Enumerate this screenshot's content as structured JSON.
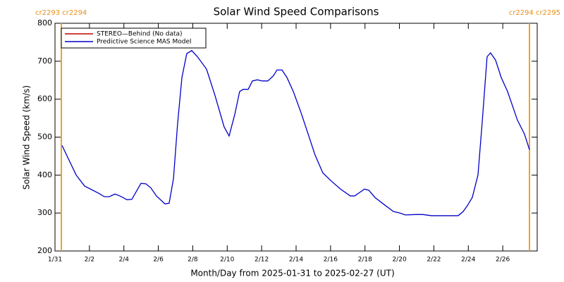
{
  "chart_data": {
    "type": "line",
    "title": "Solar Wind Speed Comparisons",
    "x_label": "Month/Day from 2025-01-31 to 2025-02-27 (UT)",
    "y_label": "Solar Wind Speed (km/s)",
    "xlim": [
      0,
      28
    ],
    "xticks": [
      {
        "value": 0,
        "label": "1/31"
      },
      {
        "value": 2,
        "label": "2/2"
      },
      {
        "value": 4,
        "label": "2/4"
      },
      {
        "value": 6,
        "label": "2/6"
      },
      {
        "value": 8,
        "label": "2/8"
      },
      {
        "value": 10,
        "label": "2/10"
      },
      {
        "value": 12,
        "label": "2/12"
      },
      {
        "value": 14,
        "label": "2/14"
      },
      {
        "value": 16,
        "label": "2/16"
      },
      {
        "value": 18,
        "label": "2/18"
      },
      {
        "value": 20,
        "label": "2/20"
      },
      {
        "value": 22,
        "label": "2/22"
      },
      {
        "value": 24,
        "label": "2/24"
      },
      {
        "value": 26,
        "label": "2/26"
      }
    ],
    "ylim": [
      200,
      800
    ],
    "yticks": [
      200,
      300,
      400,
      500,
      600,
      700,
      800
    ],
    "legend": "upper left",
    "markers_color": "#f0a030",
    "carrington_markers": [
      {
        "x": 0.37,
        "label": "cr2293 cr2294"
      },
      {
        "x": 27.55,
        "label": "cr2294 cr2295"
      }
    ],
    "series": [
      {
        "name": "STEREO—Behind (No data)",
        "color": "#c00000",
        "x": [],
        "values": []
      },
      {
        "name": "Predictive Science MAS Model",
        "color": "#0000c8",
        "x": [
          0.41,
          1.23,
          1.72,
          2.54,
          2.87,
          3.15,
          3.48,
          3.77,
          4.18,
          4.46,
          4.99,
          5.28,
          5.57,
          5.89,
          6.39,
          6.63,
          6.88,
          7.12,
          7.37,
          7.65,
          7.94,
          8.27,
          8.8,
          9.29,
          9.82,
          10.11,
          10.44,
          10.72,
          10.93,
          11.22,
          11.46,
          11.75,
          12.03,
          12.36,
          12.69,
          12.89,
          13.18,
          13.47,
          13.84,
          14.29,
          14.7,
          15.1,
          15.55,
          16.05,
          16.58,
          17.15,
          17.4,
          17.97,
          18.22,
          18.58,
          19.12,
          19.65,
          20.02,
          20.34,
          20.96,
          21.37,
          21.86,
          22.51,
          23.41,
          23.7,
          23.94,
          24.23,
          24.56,
          24.8,
          25.09,
          25.29,
          25.58,
          25.91,
          26.28,
          26.85,
          27.26,
          27.55
        ],
        "values": [
          478,
          400,
          371,
          352,
          343,
          343,
          350,
          345,
          335,
          336,
          378,
          377,
          366,
          345,
          324,
          326,
          391,
          536,
          657,
          720,
          728,
          712,
          679,
          610,
          527,
          503,
          560,
          620,
          626,
          626,
          648,
          651,
          648,
          648,
          662,
          677,
          677,
          657,
          620,
          564,
          508,
          453,
          406,
          384,
          363,
          345,
          345,
          363,
          360,
          341,
          322,
          304,
          300,
          295,
          296,
          296,
          293,
          293,
          293,
          304,
          319,
          341,
          400,
          536,
          712,
          722,
          703,
          657,
          620,
          545,
          508,
          467
        ]
      }
    ]
  }
}
